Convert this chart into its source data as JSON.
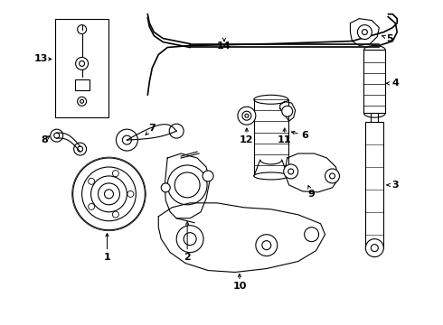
{
  "background_color": "#ffffff",
  "line_color": "#000000",
  "fig_width": 4.9,
  "fig_height": 3.6,
  "dpi": 100,
  "font_size": 8,
  "font_weight": "bold"
}
